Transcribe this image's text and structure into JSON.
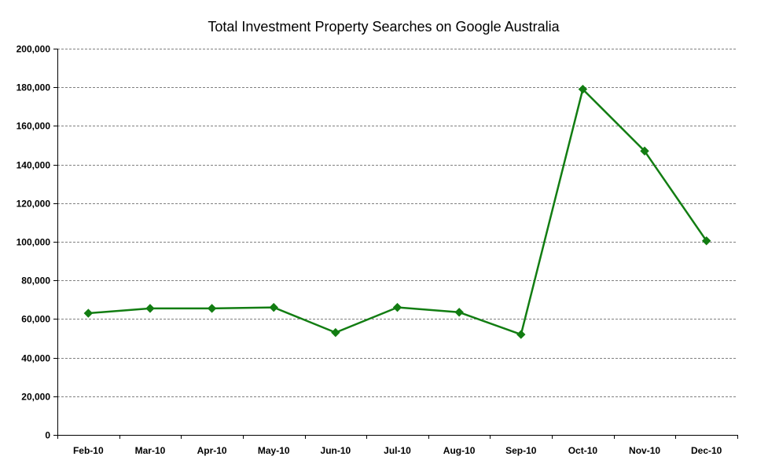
{
  "chart_data": {
    "type": "line",
    "title": "Total Investment Property Searches on Google Australia",
    "xlabel": "",
    "ylabel": "",
    "categories": [
      "Feb-10",
      "Mar-10",
      "Apr-10",
      "May-10",
      "Jun-10",
      "Jul-10",
      "Aug-10",
      "Sep-10",
      "Oct-10",
      "Nov-10",
      "Dec-10"
    ],
    "series": [
      {
        "values": [
          63000,
          65500,
          65500,
          66000,
          53000,
          66000,
          63500,
          52000,
          179000,
          147000,
          100500
        ],
        "color": "#127d12",
        "marker": "diamond"
      }
    ],
    "ylim": [
      0,
      200000
    ],
    "y_ticks": [
      "0",
      "20,000",
      "40,000",
      "60,000",
      "80,000",
      "100,000",
      "120,000",
      "140,000",
      "160,000",
      "180,000",
      "200,000"
    ],
    "y_tick_values": [
      0,
      20000,
      40000,
      60000,
      80000,
      100000,
      120000,
      140000,
      160000,
      180000,
      200000
    ],
    "grid": "horizontal-dashed",
    "legend": "none",
    "colors": {
      "line": "#127d12",
      "gridline": "#808080",
      "axis": "#000000"
    }
  }
}
